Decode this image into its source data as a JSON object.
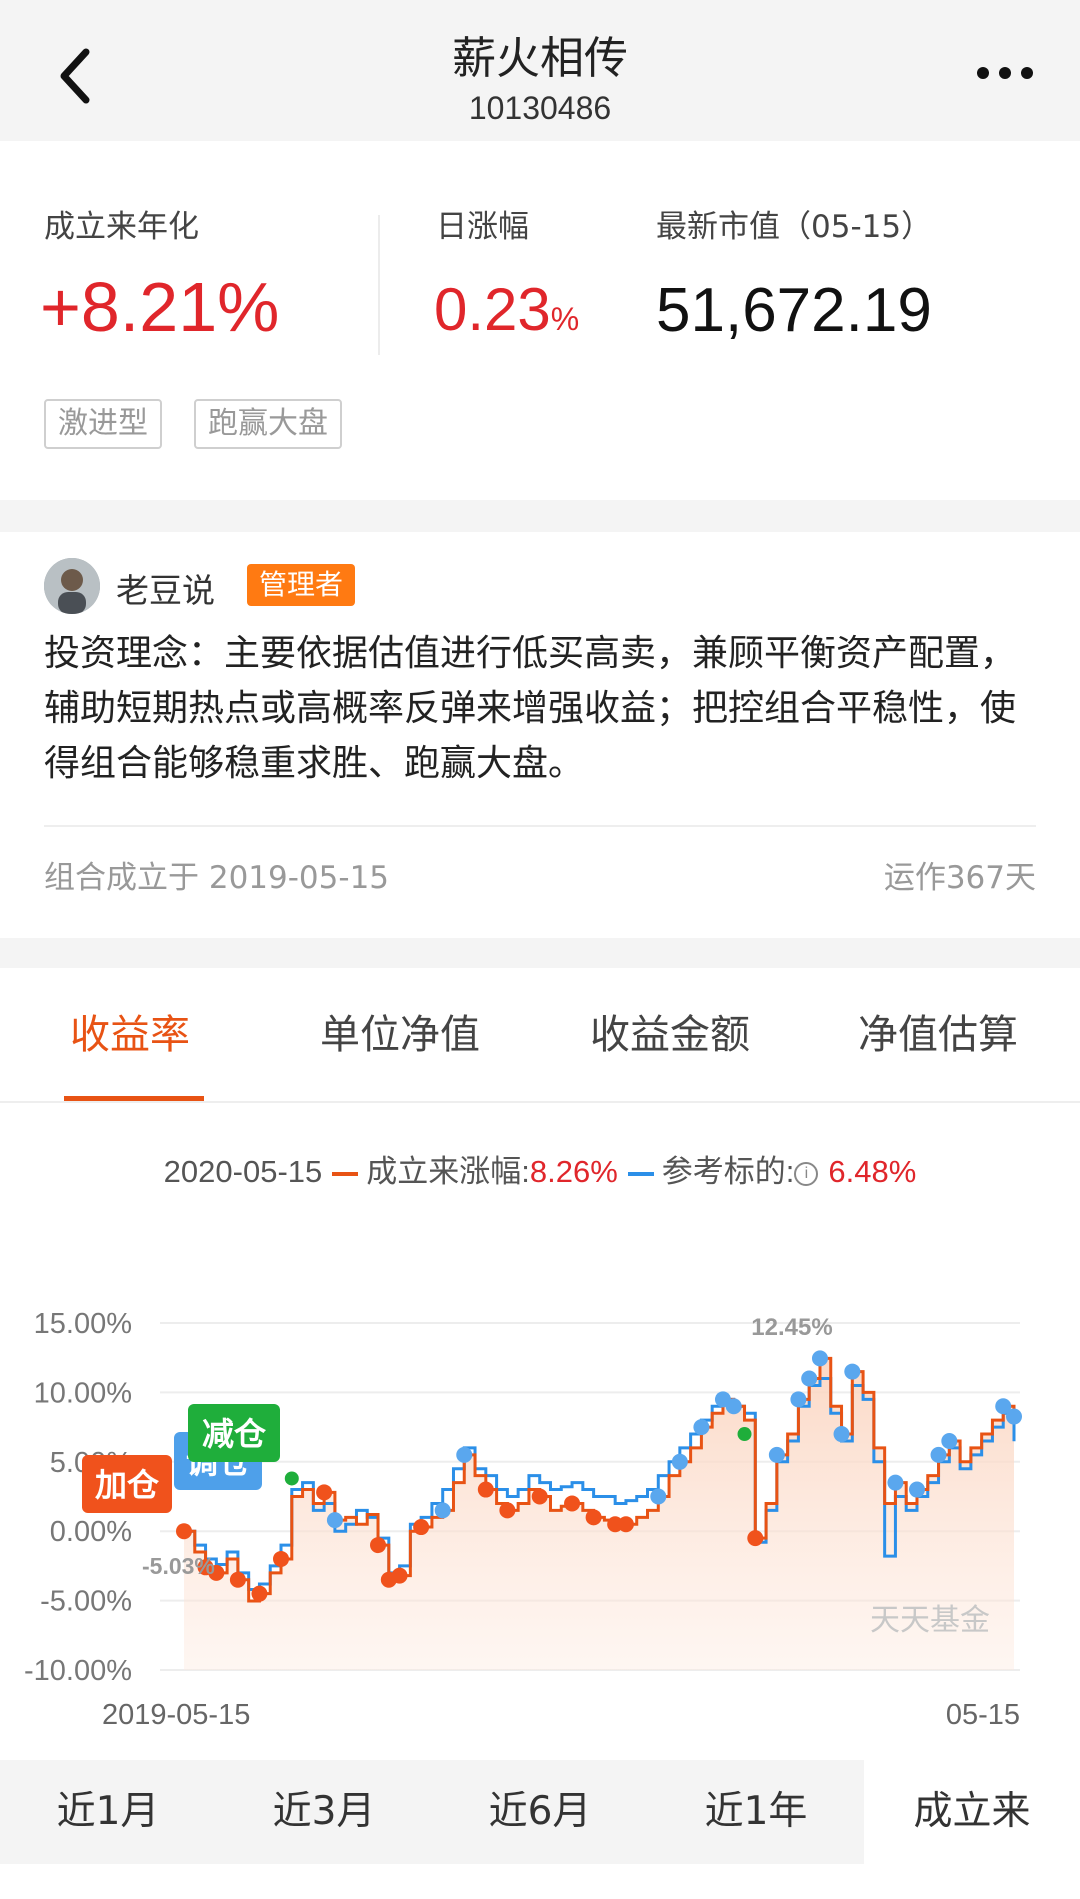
{
  "header": {
    "title": "薪火相传",
    "code": "10130486",
    "back_icon": "chevron-left-icon",
    "more_icon": "more-dots-icon"
  },
  "summary": {
    "annualized_label": "成立来年化",
    "annualized_value": "+8.21%",
    "daily_label": "日涨幅",
    "daily_value": "0.23",
    "daily_unit": "%",
    "market_value_label": "最新市值（05-15）",
    "market_value": "51,672.19",
    "tags": [
      "激进型",
      "跑赢大盘"
    ],
    "colors": {
      "up": "#e0262b"
    }
  },
  "manager": {
    "name": "老豆说",
    "badge": "管理者",
    "philosophy": "投资理念：主要依据估值进行低买高卖，兼顾平衡资产配置，辅助短期热点或高概率反弹来增强收益；把控组合平稳性，使得组合能够稳重求胜、跑赢大盘。",
    "established": "组合成立于 2019-05-15",
    "running_days": "运作367天"
  },
  "tabs": [
    "收益率",
    "单位净值",
    "收益金额",
    "净值估算"
  ],
  "legend": {
    "date": "2020-05-15",
    "fund_label": "成立来涨幅:",
    "fund_value": "8.26%",
    "bench_label": "参考标的:",
    "bench_value": "6.48%",
    "fund_color": "#e85314",
    "bench_color": "#2b8fe8"
  },
  "chart_data": {
    "type": "line",
    "x_start_label": "2019-05-15",
    "x_end_label": "05-15",
    "ylim": [
      -10,
      15
    ],
    "yticks": [
      "15.00%",
      "10.00%",
      "5.00%",
      "0.00%",
      "-5.00%",
      "-10.00%"
    ],
    "max_label": "12.45%",
    "min_label": "-5.03%",
    "watermark": "天天基金",
    "markers": {
      "add": "加仓",
      "reduce": "减仓",
      "adjust": "调仓"
    },
    "series": [
      {
        "name": "成立来涨幅",
        "color": "#e85314",
        "values": [
          0,
          -1.5,
          -2.6,
          -3.0,
          -2.0,
          -3.5,
          -5.03,
          -4.5,
          -3.0,
          -2.0,
          2.5,
          3.0,
          2.0,
          2.8,
          0.8,
          1.0,
          0.5,
          1.2,
          -1.0,
          -3.5,
          -3.2,
          0,
          0.3,
          1.0,
          1.5,
          3.5,
          5.5,
          4.0,
          3.0,
          2.0,
          1.5,
          2.0,
          3.0,
          2.5,
          1.5,
          1.8,
          2.0,
          1.5,
          1.0,
          0.8,
          0.5,
          0.5,
          1.0,
          1.5,
          2.5,
          4.0,
          5.0,
          6.0,
          7.5,
          8.5,
          9.5,
          9.0,
          8.0,
          -0.5,
          2.0,
          5.5,
          7.0,
          9.5,
          11.0,
          12.45,
          9.0,
          7.0,
          11.5,
          10.0,
          6.0,
          2.0,
          3.5,
          2.0,
          3.0,
          4.0,
          5.5,
          6.5,
          5.0,
          6.0,
          7.0,
          8.0,
          9.0,
          8.26
        ]
      },
      {
        "name": "参考标的",
        "color": "#2b8fe8",
        "values": [
          0,
          -1.0,
          -2.0,
          -2.4,
          -1.5,
          -3.0,
          -4.2,
          -3.8,
          -2.5,
          -1.0,
          3.0,
          3.5,
          1.5,
          2.0,
          0.0,
          0.5,
          1.5,
          1.0,
          -0.5,
          -3.0,
          -2.5,
          0.5,
          1.0,
          2.0,
          3.0,
          4.5,
          6.0,
          4.5,
          4.0,
          3.0,
          2.5,
          3.0,
          4.0,
          3.5,
          3.0,
          3.2,
          3.5,
          3.0,
          2.5,
          2.5,
          2.0,
          2.2,
          2.5,
          3.0,
          4.0,
          5.0,
          6.0,
          7.0,
          8.0,
          9.0,
          9.5,
          9.0,
          8.5,
          -0.8,
          1.5,
          5.0,
          6.5,
          9.0,
          10.5,
          11.0,
          8.5,
          6.5,
          10.5,
          9.5,
          5.0,
          -1.8,
          2.5,
          1.5,
          2.5,
          3.5,
          5.0,
          6.0,
          4.5,
          5.5,
          6.5,
          7.5,
          8.5,
          6.48
        ]
      }
    ]
  },
  "ranges": [
    "近1月",
    "近3月",
    "近6月",
    "近1年",
    "成立来"
  ]
}
